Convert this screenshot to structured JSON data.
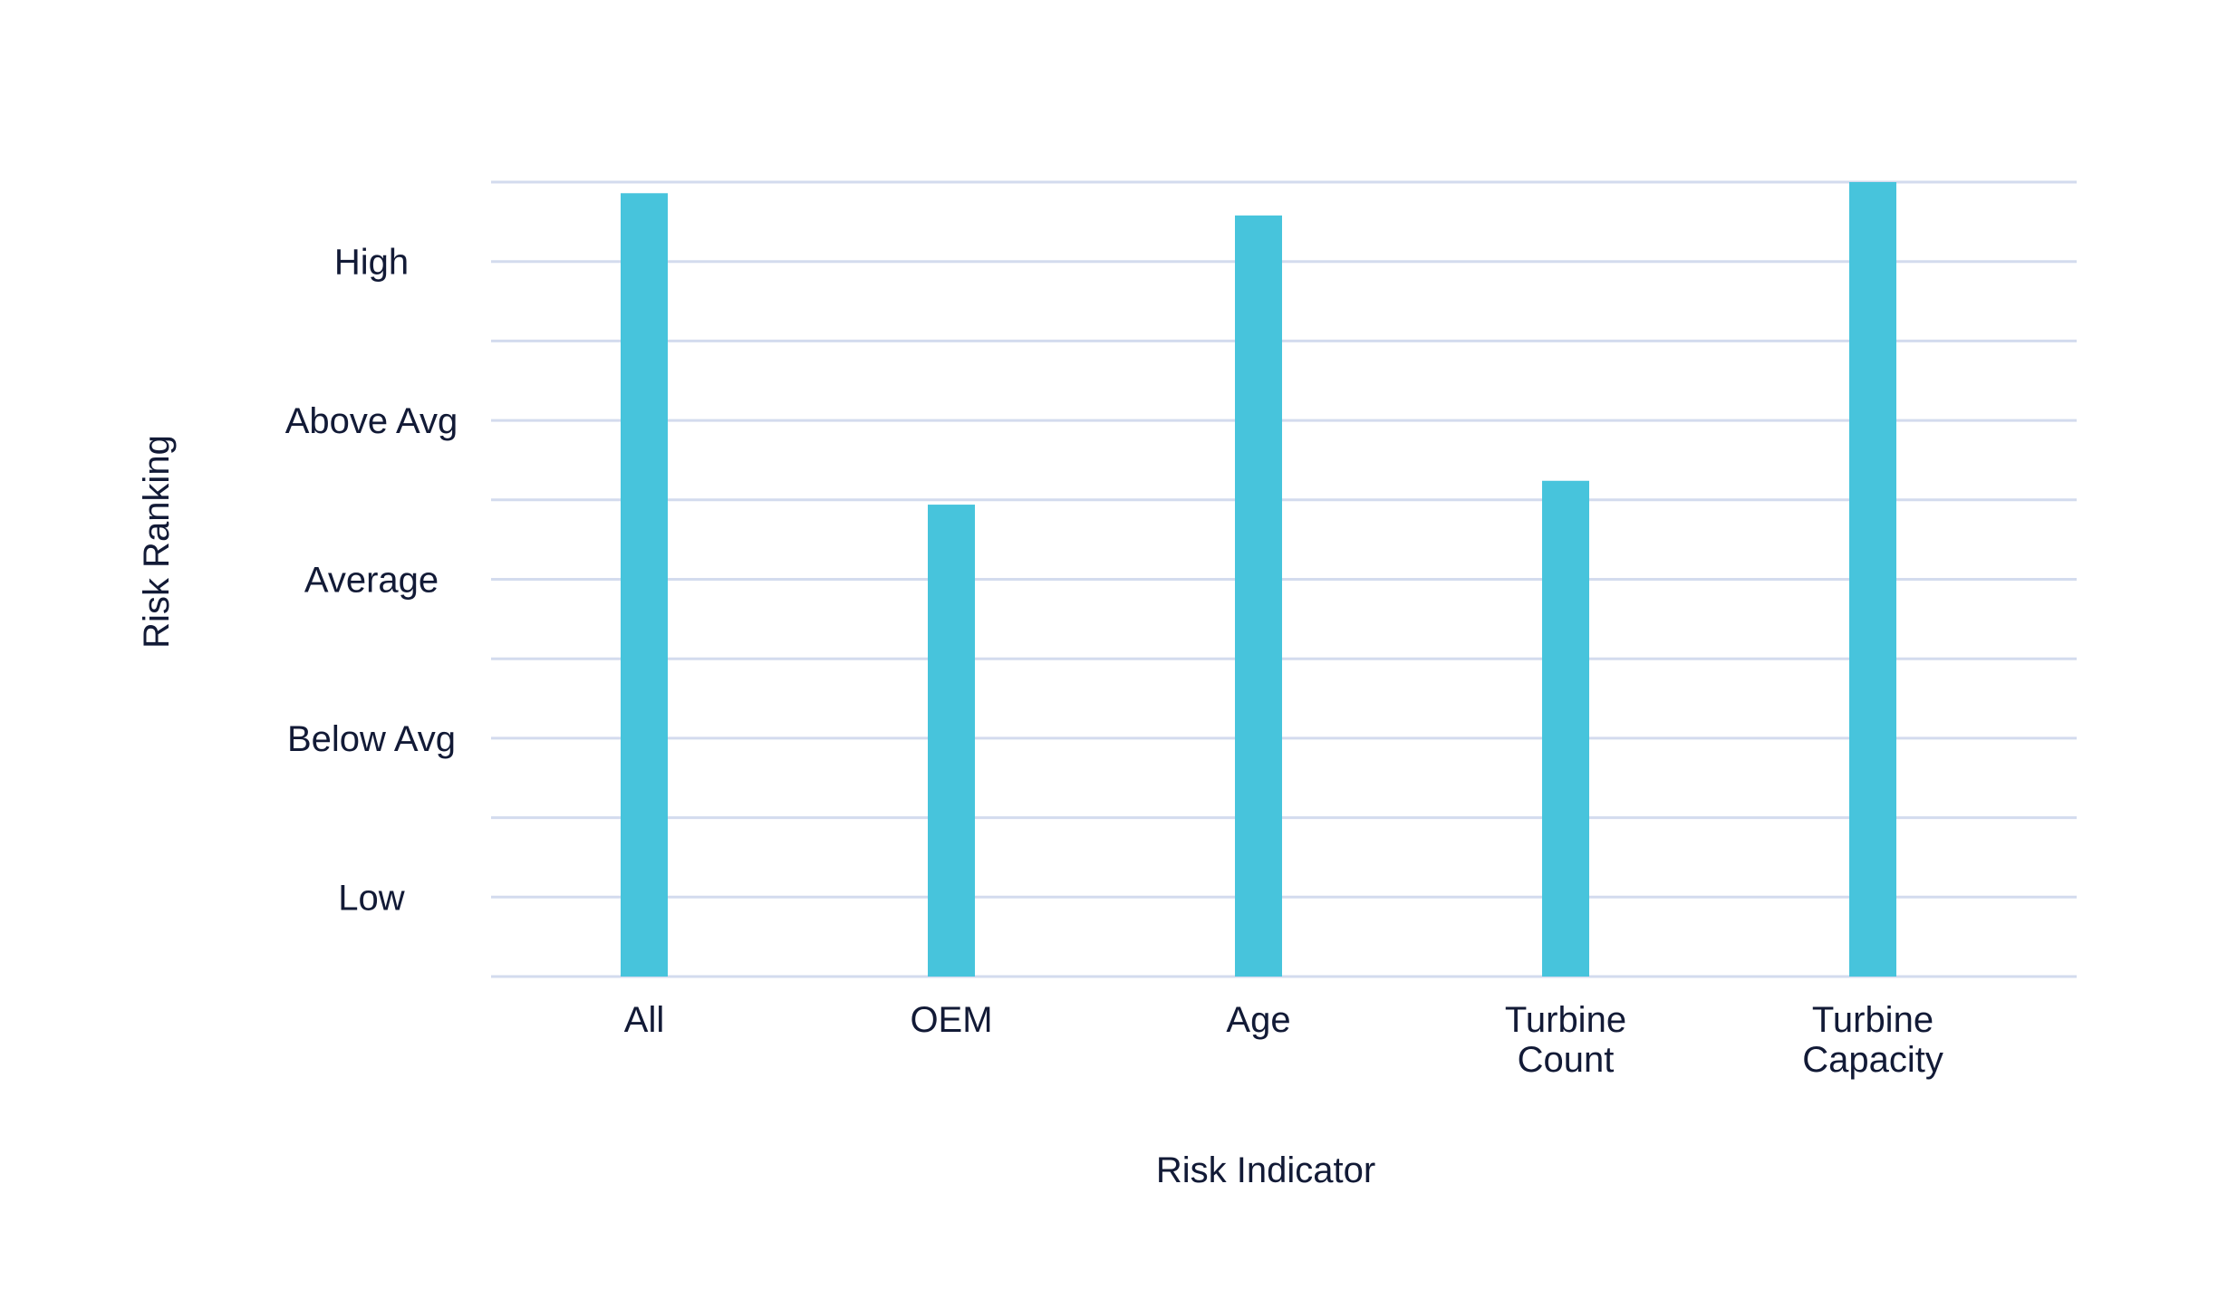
{
  "chart_data": {
    "type": "bar",
    "title": "",
    "xlabel": "Risk Indicator",
    "ylabel": "Risk Ranking",
    "categories": [
      [
        "All"
      ],
      [
        "OEM"
      ],
      [
        "Age"
      ],
      [
        "Turbine",
        "Count"
      ],
      [
        "Turbine",
        "Capacity"
      ]
    ],
    "values": [
      4.93,
      2.97,
      4.79,
      3.12,
      5.0
    ],
    "ylim": [
      0,
      5
    ],
    "y_tick_labels": [
      {
        "value": 0.5,
        "label": "Low"
      },
      {
        "value": 1.5,
        "label": "Below Avg"
      },
      {
        "value": 2.5,
        "label": "Average"
      },
      {
        "value": 3.5,
        "label": "Above Avg"
      },
      {
        "value": 4.5,
        "label": "High"
      }
    ],
    "gridlines": [
      0,
      0.5,
      1,
      1.5,
      2,
      2.5,
      3,
      3.5,
      4,
      4.5,
      5
    ],
    "grid": true,
    "legend": "none",
    "colors": {
      "bar": "#47c4dc",
      "grid": "#d3dbee",
      "text": "#121a36"
    }
  }
}
